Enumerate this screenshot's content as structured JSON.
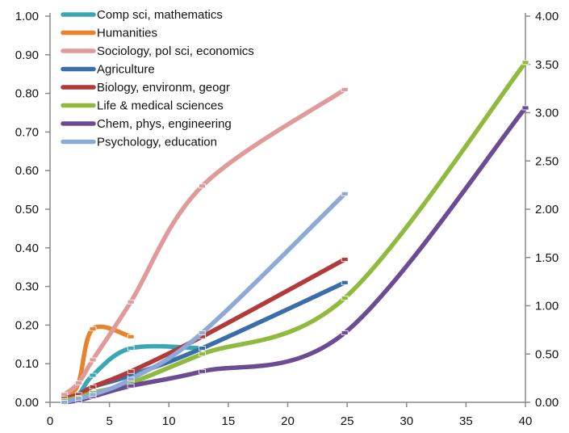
{
  "chart_data": {
    "type": "line",
    "title": "",
    "xlabel": "",
    "ylabel": "",
    "xlim": [
      0,
      40
    ],
    "ylim_left": [
      0,
      1
    ],
    "ylim_right": [
      0,
      4
    ],
    "grid": false,
    "legend_position": "top-left",
    "x_ticks": [
      "0",
      "5",
      "10",
      "15",
      "20",
      "25",
      "30",
      "35",
      "40"
    ],
    "y_left_ticks": [
      "0.00",
      "0.10",
      "0.20",
      "0.30",
      "0.40",
      "0.50",
      "0.60",
      "0.70",
      "0.80",
      "0.90",
      "1.00"
    ],
    "y_right_ticks": [
      "0.00",
      "0.50",
      "1.00",
      "1.50",
      "2.00",
      "2.50",
      "3.00",
      "3.50",
      "4.00"
    ],
    "series": [
      {
        "name": "Comp sci, mathematics",
        "color": "#3aa7b5",
        "axis": "left",
        "x": [
          1.2,
          2.4,
          3.6,
          6.8,
          12.8
        ],
        "y": [
          0.01,
          0.02,
          0.07,
          0.14,
          0.14
        ]
      },
      {
        "name": "Humanities",
        "color": "#e8832c",
        "axis": "left",
        "x": [
          1.2,
          2.4,
          3.6,
          6.8
        ],
        "y": [
          0.0,
          0.05,
          0.19,
          0.17
        ]
      },
      {
        "name": "Sociology, pol sci, economics",
        "color": "#e09a9a",
        "axis": "left",
        "x": [
          1.2,
          2.4,
          3.6,
          6.8,
          12.8,
          24.8
        ],
        "y": [
          0.02,
          0.05,
          0.11,
          0.26,
          0.56,
          0.81
        ]
      },
      {
        "name": "Agriculture",
        "color": "#3b6ea8",
        "axis": "left",
        "x": [
          1.2,
          2.4,
          3.6,
          6.8,
          12.8,
          24.8
        ],
        "y": [
          0.01,
          0.02,
          0.04,
          0.07,
          0.14,
          0.31
        ]
      },
      {
        "name": "Biology, environm, geogr",
        "color": "#b23a3a",
        "axis": "left",
        "x": [
          1.2,
          2.4,
          3.6,
          6.8,
          12.8,
          24.8
        ],
        "y": [
          0.01,
          0.02,
          0.04,
          0.08,
          0.17,
          0.37
        ]
      },
      {
        "name": "Life & medical sciences",
        "color": "#8fba3d",
        "axis": "right",
        "x": [
          1.2,
          2.4,
          3.6,
          6.8,
          12.8,
          24.8,
          40
        ],
        "y": [
          0.02,
          0.05,
          0.1,
          0.2,
          0.5,
          1.08,
          3.52
        ]
      },
      {
        "name": "Chem, phys, engineering",
        "color": "#6b4c93",
        "axis": "right",
        "x": [
          1.2,
          2.4,
          3.6,
          6.8,
          12.8,
          24.8,
          40
        ],
        "y": [
          0.0,
          0.02,
          0.06,
          0.17,
          0.32,
          0.72,
          3.05
        ]
      },
      {
        "name": "Psychology, education",
        "color": "#8ea9d6",
        "axis": "left",
        "x": [
          1.2,
          2.4,
          3.6,
          6.8,
          12.8,
          24.8
        ],
        "y": [
          0.0,
          0.01,
          0.02,
          0.06,
          0.18,
          0.54
        ]
      }
    ]
  }
}
